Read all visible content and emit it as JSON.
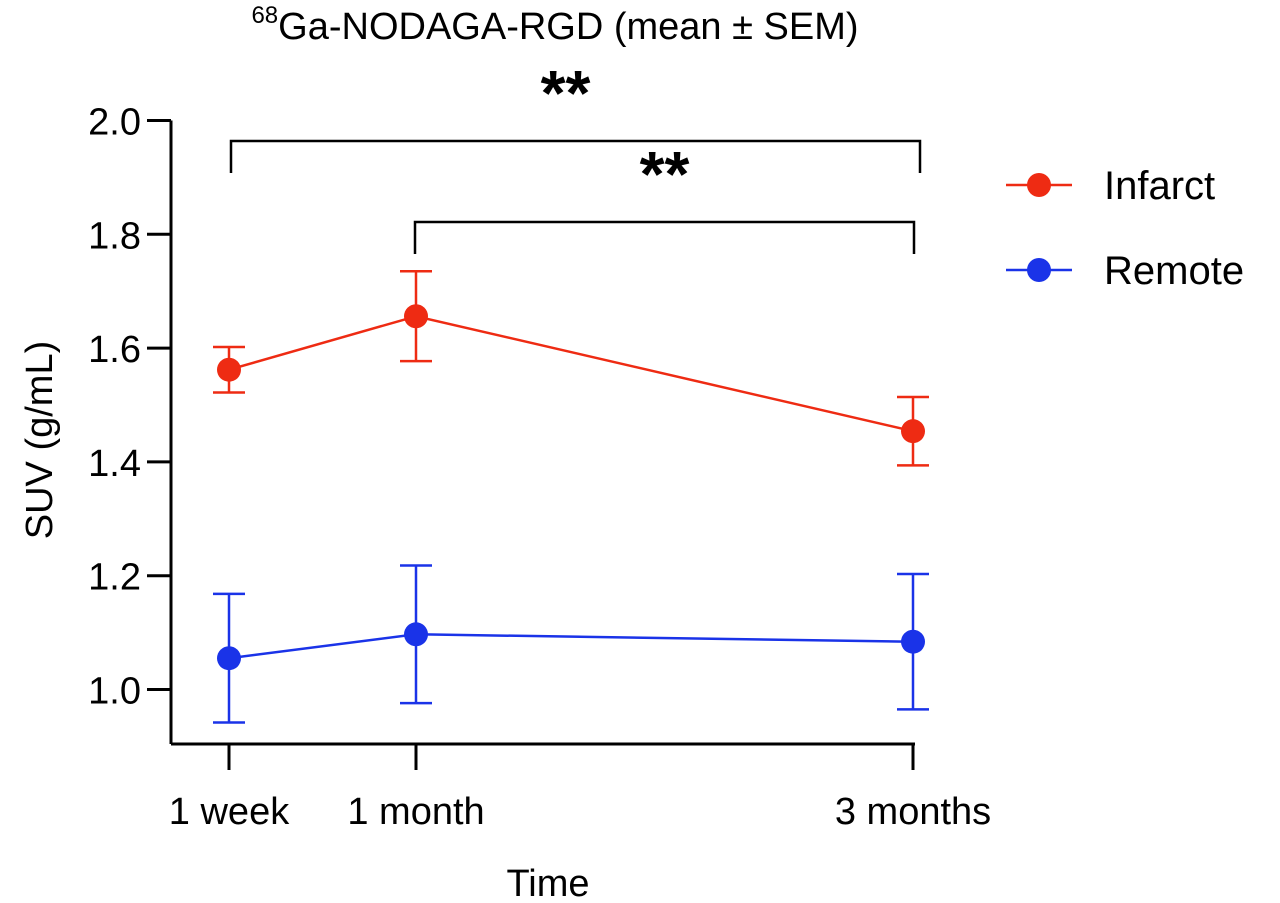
{
  "chart_data": {
    "type": "line",
    "title_superscript": "68",
    "title_main": "Ga-NODAGA-RGD (mean ± SEM)",
    "xlabel": "Time",
    "ylabel": "SUV (g/mL)",
    "categories": [
      "1 week",
      "1 month",
      "3 months"
    ],
    "x": [
      0.25,
      1,
      3
    ],
    "ylim": [
      0.95,
      2.0
    ],
    "yticks": [
      1.0,
      1.2,
      1.4,
      1.6,
      1.8,
      2.0
    ],
    "ytick_labels": [
      "1.0",
      "1.2",
      "1.4",
      "1.6",
      "1.8",
      "2.0"
    ],
    "grid": false,
    "legend_position": "right",
    "series": [
      {
        "name": "Infarct",
        "color": "#ee2b13",
        "values": [
          1.562,
          1.656,
          1.454
        ],
        "sem": [
          0.04,
          0.079,
          0.06
        ]
      },
      {
        "name": "Remote",
        "color": "#1a33e8",
        "values": [
          1.055,
          1.097,
          1.084
        ],
        "sem": [
          0.113,
          0.121,
          0.119
        ]
      }
    ],
    "significance": [
      {
        "from": "1 week",
        "to": "3 months",
        "label": "**"
      },
      {
        "from": "1 month",
        "to": "3 months",
        "label": "**"
      }
    ]
  }
}
